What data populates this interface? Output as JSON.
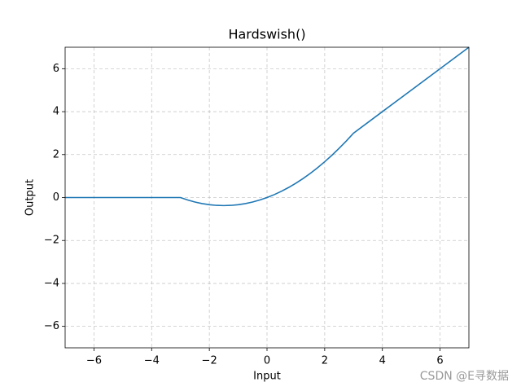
{
  "chart_data": {
    "type": "line",
    "title": "Hardswish()",
    "xlabel": "Input",
    "ylabel": "Output",
    "x": [
      -7,
      -6,
      -5,
      -4,
      -3,
      -2.75,
      -2.5,
      -2.25,
      -2,
      -1.75,
      -1.5,
      -1.25,
      -1,
      -0.75,
      -0.5,
      -0.25,
      0,
      0.25,
      0.5,
      0.75,
      1,
      1.25,
      1.5,
      1.75,
      2,
      2.25,
      2.5,
      2.75,
      3,
      4,
      5,
      6,
      7
    ],
    "series": [
      {
        "name": "Hardswish",
        "color": "#1f77b4",
        "values": [
          0,
          0,
          0,
          0,
          0,
          -0.1146,
          -0.2083,
          -0.2813,
          -0.3333,
          -0.3646,
          -0.375,
          -0.3646,
          -0.3333,
          -0.2813,
          -0.2083,
          -0.1146,
          0,
          0.1354,
          0.2917,
          0.4688,
          0.6667,
          0.8854,
          1.125,
          1.3854,
          1.6667,
          1.9688,
          2.2917,
          2.6354,
          3,
          4,
          5,
          6,
          7
        ]
      }
    ],
    "xlim": [
      -7,
      7
    ],
    "ylim": [
      -7,
      7
    ],
    "xticks": [
      {
        "value": -6,
        "label": "−6"
      },
      {
        "value": -4,
        "label": "−4"
      },
      {
        "value": -2,
        "label": "−2"
      },
      0,
      2,
      4,
      6
    ],
    "yticks": [
      {
        "value": -6,
        "label": "−6"
      },
      {
        "value": -4,
        "label": "−4"
      },
      {
        "value": -2,
        "label": "−2"
      },
      0,
      2,
      4,
      6
    ],
    "grid": true
  },
  "watermark": "CSDN @E寻数据"
}
